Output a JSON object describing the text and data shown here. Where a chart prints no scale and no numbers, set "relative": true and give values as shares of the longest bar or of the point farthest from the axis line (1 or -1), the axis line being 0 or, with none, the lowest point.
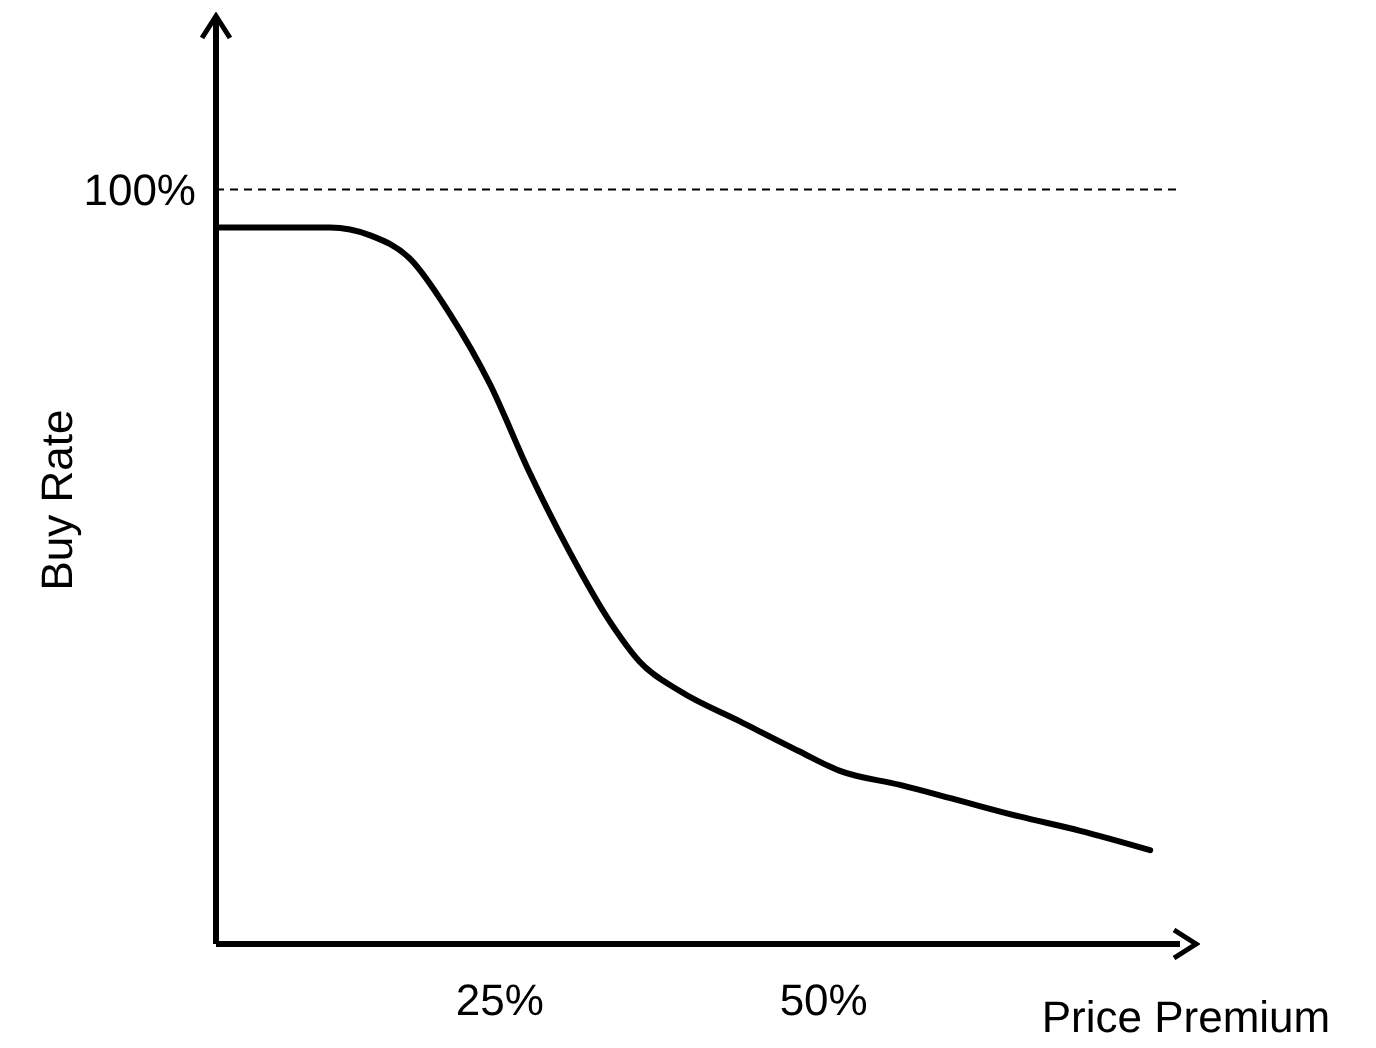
{
  "chart_data": {
    "type": "line",
    "relative": true,
    "xlabel": "Price Premium",
    "ylabel": "Buy Rate",
    "x": [
      3.1,
      11.9,
      15.0,
      18.1,
      21.1,
      24.2,
      27.3,
      30.4,
      33.5,
      35.8,
      38.9,
      43.5,
      48.1,
      51.2,
      55.9,
      60.5,
      65.1,
      69.8,
      75.2
    ],
    "series": [
      {
        "color": "#000000",
        "values": [
          1,
          1,
          0.989,
          0.956,
          0.881,
          0.783,
          0.658,
          0.547,
          0.45,
          0.394,
          0.353,
          0.311,
          0.269,
          0.242,
          0.222,
          0.2,
          0.178,
          0.158,
          0.131
        ]
      }
    ],
    "xlim": [
      3.1,
      77.5
    ],
    "xticks": [
      {
        "value": 25,
        "label": "25%"
      },
      {
        "value": 50,
        "label": "50%"
      }
    ],
    "ref_lines": [
      {
        "axis": "y",
        "value": 1.053,
        "color": "#000000",
        "line_style": "dashed"
      }
    ],
    "annotations": [
      "100%"
    ],
    "grid": false,
    "legend": false,
    "marker": "none",
    "line_style": "solid"
  }
}
